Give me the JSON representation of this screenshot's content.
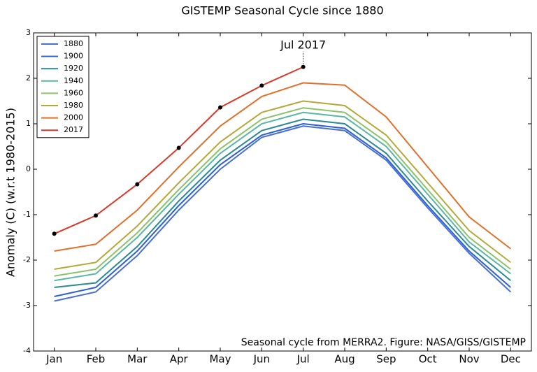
{
  "chart_data": {
    "type": "line",
    "title": "GISTEMP Seasonal Cycle since 1880",
    "y_label": "Anomaly (C) (w.r.t 1980-2015)",
    "annotations": [
      {
        "text": "Jul 2017"
      }
    ],
    "footnote": "Seasonal cycle from MERRA2. Figure: NASA/GISS/GISTEMP",
    "categories": [
      "Jan",
      "Feb",
      "Mar",
      "Apr",
      "May",
      "Jun",
      "Jul",
      "Aug",
      "Sep",
      "Oct",
      "Nov",
      "Dec"
    ],
    "ylim": [
      -4,
      3
    ],
    "yticks": [
      -4,
      -3,
      -2,
      -1,
      0,
      1,
      2,
      3
    ],
    "legend": "upper left",
    "series": [
      {
        "name": "1880",
        "color": "#4a6fd3",
        "values": [
          -2.9,
          -2.7,
          -1.9,
          -0.9,
          0.0,
          0.7,
          0.95,
          0.85,
          0.2,
          -0.85,
          -1.85,
          -2.7
        ]
      },
      {
        "name": "1900",
        "color": "#2a5fd8",
        "values": [
          -2.8,
          -2.6,
          -1.8,
          -0.8,
          0.1,
          0.75,
          1.0,
          0.9,
          0.25,
          -0.8,
          -1.8,
          -2.6
        ]
      },
      {
        "name": "1920",
        "color": "#2a8a90",
        "values": [
          -2.6,
          -2.5,
          -1.7,
          -0.7,
          0.2,
          0.85,
          1.1,
          1.0,
          0.35,
          -0.7,
          -1.7,
          -2.45
        ]
      },
      {
        "name": "1940",
        "color": "#5ab8a0",
        "values": [
          -2.45,
          -2.3,
          -1.5,
          -0.55,
          0.35,
          1.0,
          1.25,
          1.15,
          0.5,
          -0.55,
          -1.6,
          -2.3
        ]
      },
      {
        "name": "1960",
        "color": "#8cc36a",
        "values": [
          -2.35,
          -2.2,
          -1.4,
          -0.45,
          0.45,
          1.1,
          1.35,
          1.25,
          0.6,
          -0.45,
          -1.5,
          -2.2
        ]
      },
      {
        "name": "1980",
        "color": "#b5a83a",
        "values": [
          -2.2,
          -2.05,
          -1.25,
          -0.3,
          0.6,
          1.25,
          1.5,
          1.4,
          0.75,
          -0.3,
          -1.35,
          -2.05
        ]
      },
      {
        "name": "2000",
        "color": "#e0702a",
        "values": [
          -1.8,
          -1.65,
          -0.9,
          0.05,
          0.95,
          1.6,
          1.9,
          1.85,
          1.15,
          0.05,
          -1.05,
          -1.75
        ]
      },
      {
        "name": "2017",
        "color": "#d83a2a",
        "markers": true,
        "values": [
          -1.42,
          -1.02,
          -0.33,
          0.47,
          1.36,
          1.84,
          2.25,
          null,
          null,
          null,
          null,
          null
        ]
      }
    ]
  }
}
